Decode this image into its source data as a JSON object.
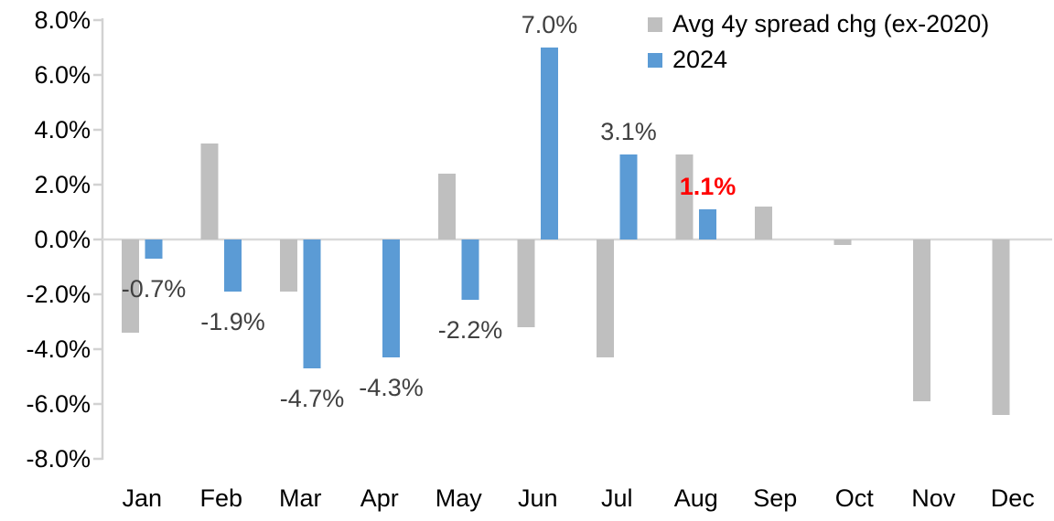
{
  "chart_data": {
    "type": "bar",
    "title": "",
    "xlabel": "",
    "ylabel": "",
    "categories": [
      "Jan",
      "Feb",
      "Mar",
      "Apr",
      "May",
      "Jun",
      "Jul",
      "Aug",
      "Sep",
      "Oct",
      "Nov",
      "Dec"
    ],
    "series": [
      {
        "name": "Avg 4y spread chg (ex-2020)",
        "color": "#bfbfbf",
        "values": [
          -3.4,
          3.5,
          -1.9,
          0.0,
          2.4,
          -3.2,
          -4.3,
          3.1,
          1.2,
          -0.2,
          -5.9,
          -6.4
        ]
      },
      {
        "name": "2024",
        "color": "#5b9bd5",
        "values": [
          -0.7,
          -1.9,
          -4.7,
          -4.3,
          -2.2,
          7.0,
          3.1,
          1.1,
          null,
          null,
          null,
          null
        ]
      }
    ],
    "data_labels": {
      "series": "2024",
      "labels": [
        {
          "category": "Jan",
          "text": "-0.7%",
          "highlight": false
        },
        {
          "category": "Feb",
          "text": "-1.9%",
          "highlight": false
        },
        {
          "category": "Mar",
          "text": "-4.7%",
          "highlight": false
        },
        {
          "category": "Apr",
          "text": "-4.3%",
          "highlight": false
        },
        {
          "category": "May",
          "text": "-2.2%",
          "highlight": false
        },
        {
          "category": "Jun",
          "text": "7.0%",
          "highlight": false
        },
        {
          "category": "Jul",
          "text": "3.1%",
          "highlight": false
        },
        {
          "category": "Aug",
          "text": "1.1%",
          "highlight": true
        }
      ]
    },
    "ylim": [
      -8,
      8
    ],
    "ytick_values": [
      8,
      6,
      4,
      2,
      0,
      -2,
      -4,
      -6,
      -8
    ],
    "ytick_labels": [
      "8.0%",
      "6.0%",
      "4.0%",
      "2.0%",
      "0.0%",
      "-2.0%",
      "-4.0%",
      "-6.0%",
      "-8.0%"
    ],
    "grid": false,
    "legend_position": "top-right",
    "colors": {
      "axis_line": "#d2d2d2",
      "zero_line": "#d9d9d9",
      "tick_label": "#000000",
      "month_label": "#000000",
      "data_label": "#404040",
      "data_label_highlight": "#ff0000"
    }
  }
}
